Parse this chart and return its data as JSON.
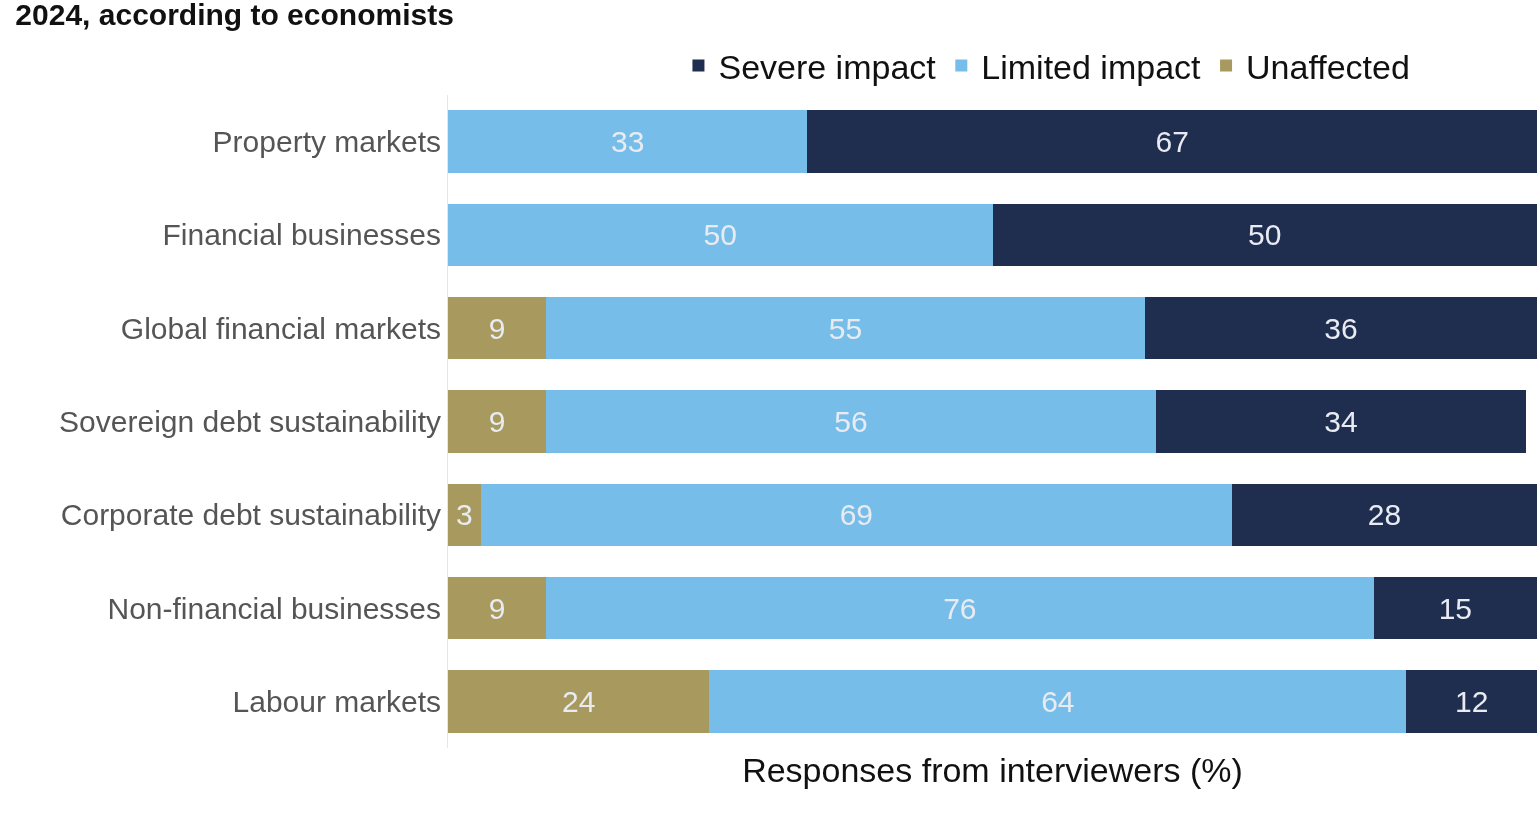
{
  "chart_data": {
    "type": "bar",
    "orientation": "horizontal",
    "stacked": true,
    "title": "2024, according to economists",
    "xlabel": "Responses from interviewers (%)",
    "categories": [
      "Property markets",
      "Financial businesses",
      "Global financial markets",
      "Sovereign debt sustainability",
      "Corporate debt sustainability",
      "Non-financial businesses",
      "Labour markets"
    ],
    "series": [
      {
        "name": "Unaffected",
        "color": "#a89a5e",
        "values": [
          null,
          null,
          9,
          9,
          3,
          9,
          24
        ]
      },
      {
        "name": "Limited impact",
        "color": "#77bde9",
        "values": [
          33,
          50,
          55,
          56,
          69,
          76,
          64
        ]
      },
      {
        "name": "Severe impact",
        "color": "#1f2d4f",
        "values": [
          67,
          50,
          36,
          34,
          28,
          15,
          12
        ]
      }
    ],
    "xlim": [
      0,
      100
    ],
    "data_labels": true,
    "legend": "top",
    "grid": false,
    "tick_labels": "y"
  }
}
